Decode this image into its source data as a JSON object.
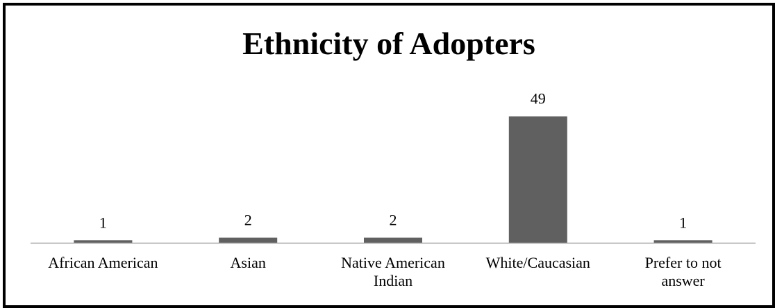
{
  "chart_data": {
    "type": "bar",
    "title": "Ethnicity of Adopters",
    "xlabel": "",
    "ylabel": "",
    "categories": [
      "African American",
      "Asian",
      "Native American Indian",
      "White/Caucasian",
      "Prefer to not answer"
    ],
    "category_label_lines": [
      [
        "African American"
      ],
      [
        "Asian"
      ],
      [
        "Native American",
        "Indian"
      ],
      [
        "White/Caucasian"
      ],
      [
        "Prefer to not",
        "answer"
      ]
    ],
    "values": [
      1,
      2,
      2,
      49,
      1
    ],
    "data_labels": [
      "1",
      "2",
      "2",
      "49",
      "1"
    ],
    "ylim": [
      0,
      50
    ],
    "grid": false,
    "legend": "none",
    "bar_color": "#606060",
    "axis_color": "#a6a6a6"
  }
}
